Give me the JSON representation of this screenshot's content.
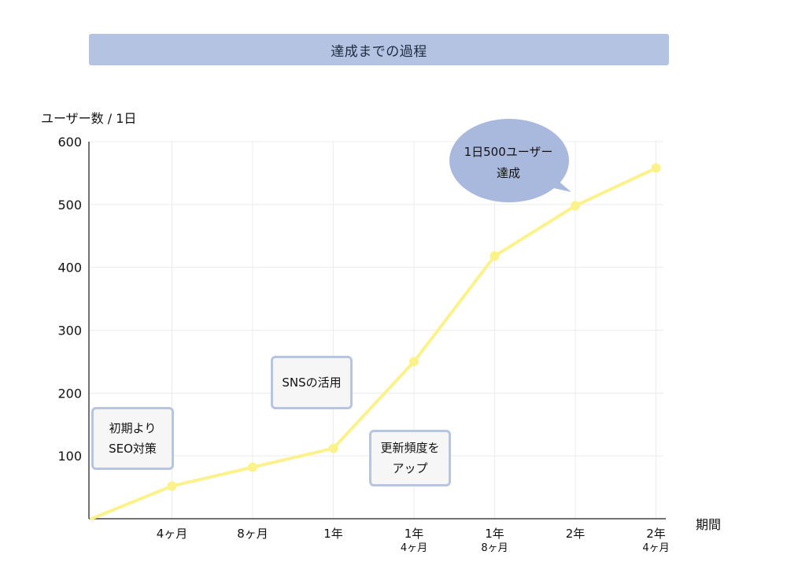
{
  "header": {
    "title": "達成までの過程"
  },
  "colors": {
    "title_bg": "#b4c3e2",
    "line": "#fbf28c",
    "grid": "#ececec",
    "axis": "#444444",
    "callout_border": "#b8c5e0",
    "callout_bg": "#f6f6f6",
    "bubble": "#a9b8dd"
  },
  "callouts": {
    "seo_line1": "初期より",
    "seo_line2": "SEO対策",
    "sns": "SNSの活用",
    "update_line1": "更新頻度を",
    "update_line2": "アップ",
    "goal_line1": "1日500ユーザー",
    "goal_line2": "達成"
  },
  "chart_data": {
    "type": "line",
    "ylabel": "ユーザー数 / 1日",
    "xlabel": "期間",
    "ylim": [
      0,
      600
    ],
    "yticks": [
      100,
      200,
      300,
      400,
      500,
      600
    ],
    "grid": true,
    "categories": [
      {
        "main": "",
        "sub": ""
      },
      {
        "main": "4ヶ月",
        "sub": ""
      },
      {
        "main": "8ヶ月",
        "sub": ""
      },
      {
        "main": "1年",
        "sub": ""
      },
      {
        "main": "1年",
        "sub": "4ヶ月"
      },
      {
        "main": "1年",
        "sub": "8ヶ月"
      },
      {
        "main": "2年",
        "sub": ""
      },
      {
        "main": "2年",
        "sub": "4ヶ月"
      }
    ],
    "series": [
      {
        "values": [
          0,
          52,
          82,
          112,
          250,
          418,
          498,
          558
        ]
      }
    ]
  }
}
